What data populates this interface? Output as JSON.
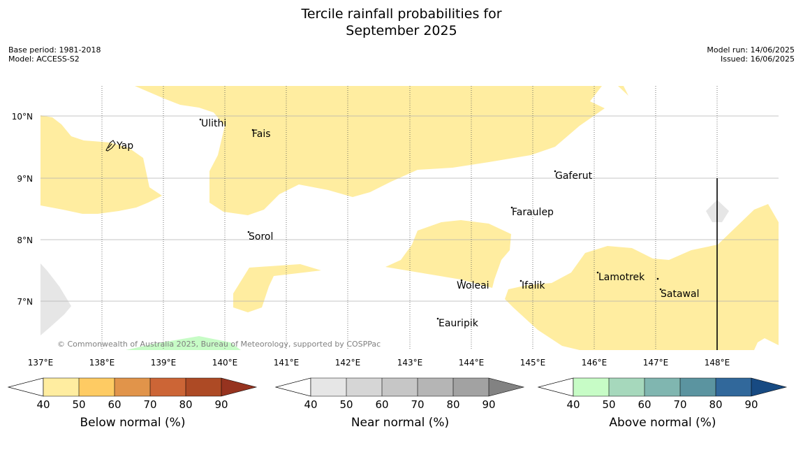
{
  "title": {
    "line1": "Tercile rainfall probabilities for",
    "line2": "September 2025"
  },
  "meta_left": {
    "base_period": "Base period: 1981-2018",
    "model": "Model: ACCESS-S2"
  },
  "meta_right": {
    "model_run": "Model run: 14/06/2025",
    "issued": "Issued: 16/06/2025"
  },
  "map": {
    "lat_labels": [
      "10°N",
      "9°N",
      "8°N",
      "7°N"
    ],
    "lon_labels": [
      "137°E",
      "138°E",
      "139°E",
      "140°E",
      "141°E",
      "142°E",
      "143°E",
      "144°E",
      "145°E",
      "146°E",
      "147°E",
      "148°E"
    ],
    "places": [
      "Ulithi",
      "Fais",
      "Yap",
      "Gaferut",
      "Faraulep",
      "Sorol",
      "Woleai",
      "Ifalik",
      "Lamotrek",
      "Satawal",
      "Eauripik"
    ],
    "copyright": "© Commonwealth of Australia 2025, Bureau of Meteorology, supported by COSPPac",
    "colors": {
      "below_normal_40_50": "#ffeda0",
      "near_normal_40_50": "#e6e6e6",
      "above_normal_40_50": "#c7fcc6",
      "grid": "#b0b0b0",
      "label_grey": "#808080"
    }
  },
  "colorbars": [
    {
      "label": "Below normal (%)",
      "ticks": [
        "40",
        "50",
        "60",
        "70",
        "80",
        "90"
      ],
      "colors": [
        "#ffeda0",
        "#fecb63",
        "#e1944a",
        "#cc6536",
        "#ad4a25",
        "#96331f"
      ]
    },
    {
      "label": "Near normal (%)",
      "ticks": [
        "40",
        "50",
        "60",
        "70",
        "80",
        "90"
      ],
      "colors": [
        "#e6e6e6",
        "#d6d6d6",
        "#c6c6c6",
        "#b5b5b5",
        "#a2a2a2",
        "#828282"
      ]
    },
    {
      "label": "Above normal (%)",
      "ticks": [
        "40",
        "50",
        "60",
        "70",
        "80",
        "90"
      ],
      "colors": [
        "#c7fcc6",
        "#a6d8bc",
        "#80b6b0",
        "#5b94a0",
        "#31689b",
        "#174a82"
      ]
    }
  ]
}
